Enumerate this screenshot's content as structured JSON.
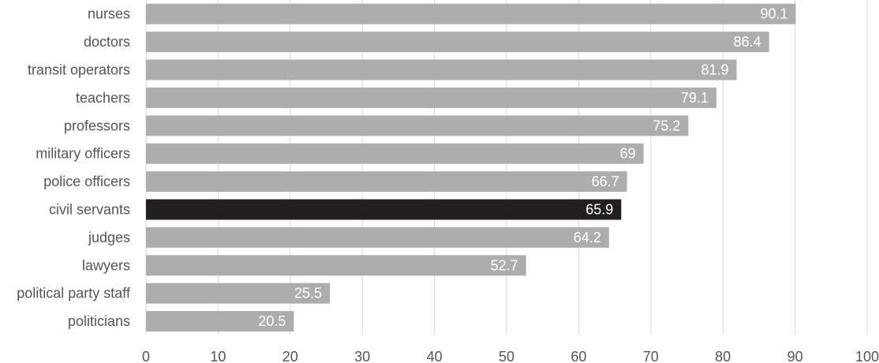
{
  "chart_data": {
    "type": "bar",
    "orientation": "horizontal",
    "categories": [
      "nurses",
      "doctors",
      "transit operators",
      "teachers",
      "professors",
      "military officers",
      "police officers",
      "civil servants",
      "judges",
      "lawyers",
      "political party staff",
      "politicians"
    ],
    "values": [
      90.1,
      86.4,
      81.9,
      79.1,
      75.2,
      69,
      66.7,
      65.9,
      64.2,
      52.7,
      25.5,
      20.5
    ],
    "value_labels": [
      "90.1",
      "86.4",
      "81.9",
      "79.1",
      "75.2",
      "69",
      "66.7",
      "65.9",
      "64.2",
      "52.7",
      "25.5",
      "20.5"
    ],
    "highlight_index": 7,
    "colors": {
      "bar": "#adadad",
      "highlight": "#231f20",
      "label": "#ffffff",
      "grid": "#d9d9d9",
      "axis_text": "#555555"
    },
    "xlim": [
      0,
      100
    ],
    "xticks": [
      0,
      10,
      20,
      30,
      40,
      50,
      60,
      70,
      80,
      90,
      100
    ],
    "grid": true,
    "title": "",
    "xlabel": "",
    "ylabel": ""
  }
}
